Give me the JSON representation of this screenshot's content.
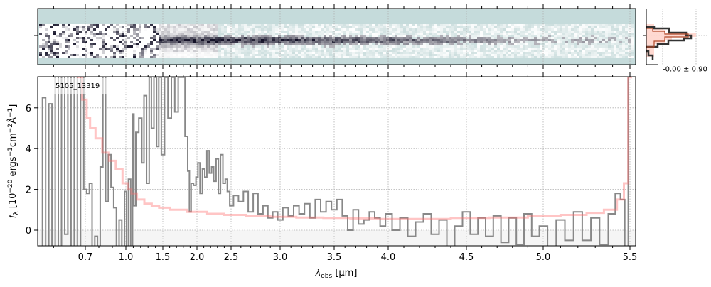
{
  "chart_data": {
    "type": "line",
    "object_label": "5105_13319",
    "xlabel": "λ_obs [μm]",
    "xlabel_parts": {
      "lam": "λ",
      "sub": "obs",
      "rest": " [μm]"
    },
    "ylabel_parts": {
      "f": "f",
      "fsub": "λ",
      "a": " [10",
      "e1": "−20",
      "b": " ergs",
      "e2": "−1",
      "c": "cm",
      "e3": "−2",
      "d": "Å",
      "e4": "−1",
      "e": "]"
    },
    "xticks": [
      0.7,
      1.0,
      1.5,
      2.0,
      2.5,
      3.0,
      3.5,
      4.0,
      4.5,
      5.0,
      5.5
    ],
    "xtick_labels": [
      "0.7",
      "1.0",
      "1.5",
      "2.0",
      "2.5",
      "3.0",
      "3.5",
      "4.0",
      "4.5",
      "5.0",
      "5.5"
    ],
    "yticks": [
      0,
      2,
      4,
      6
    ],
    "ytick_labels": [
      "0",
      "2",
      "4",
      "6"
    ],
    "xlim": [
      0.55,
      5.53
    ],
    "ylim": [
      -0.75,
      7.5
    ],
    "grid": true,
    "colors": {
      "data": "#888888",
      "model": "#ff6f6f",
      "zero_band": "#f5f5f5",
      "twod_bg": "#c5dbdb"
    },
    "series": [
      {
        "name": "data",
        "x": [
          0.56,
          0.57,
          0.58,
          0.59,
          0.6,
          0.61,
          0.62,
          0.63,
          0.64,
          0.65,
          0.66,
          0.67,
          0.68,
          0.69,
          0.7,
          0.72,
          0.74,
          0.76,
          0.78,
          0.8,
          0.82,
          0.84,
          0.86,
          0.88,
          0.9,
          0.92,
          0.94,
          0.96,
          0.98,
          1.0,
          1.02,
          1.05,
          1.08,
          1.1,
          1.12,
          1.15,
          1.2,
          1.23,
          1.26,
          1.3,
          1.33,
          1.36,
          1.4,
          1.43,
          1.46,
          1.5,
          1.55,
          1.6,
          1.65,
          1.7,
          1.75,
          1.8,
          1.85,
          1.88,
          1.9,
          1.93,
          1.97,
          2.0,
          2.03,
          2.06,
          2.1,
          2.13,
          2.16,
          2.2,
          2.23,
          2.26,
          2.3,
          2.33,
          2.36,
          2.4,
          2.43,
          2.46,
          2.5,
          2.55,
          2.6,
          2.65,
          2.7,
          2.75,
          2.8,
          2.85,
          2.9,
          2.95,
          3.0,
          3.05,
          3.1,
          3.15,
          3.2,
          3.25,
          3.3,
          3.35,
          3.4,
          3.45,
          3.5,
          3.55,
          3.6,
          3.65,
          3.7,
          3.75,
          3.8,
          3.85,
          3.9,
          3.95,
          4.0,
          4.05,
          4.1,
          4.15,
          4.2,
          4.25,
          4.3,
          4.35,
          4.4,
          4.45,
          4.5,
          4.55,
          4.6,
          4.65,
          4.7,
          4.75,
          4.8,
          4.85,
          4.9,
          4.95,
          5.0,
          5.05,
          5.1,
          5.15,
          5.2,
          5.25,
          5.3,
          5.35,
          5.4,
          5.43,
          5.46,
          5.48,
          5.5
        ],
        "y": [
          -1,
          6.5,
          -1,
          6.2,
          -1,
          8,
          -1,
          8,
          -0.2,
          8,
          -1,
          8,
          -1,
          8,
          2,
          1.8,
          2.3,
          -1,
          -0.3,
          -1,
          3.1,
          8,
          1.4,
          3.7,
          2.1,
          1.1,
          -1,
          0.5,
          -1,
          1.9,
          -1,
          2.5,
          -0.8,
          5.7,
          1.2,
          4.8,
          5.5,
          3.3,
          6.6,
          2.3,
          7.5,
          5,
          7.5,
          4.1,
          7.5,
          3.7,
          7.5,
          5.5,
          7.5,
          5.8,
          7.5,
          7.5,
          4.6,
          2.9,
          0.9,
          2.3,
          2.2,
          2.6,
          3.3,
          1.8,
          3.0,
          2.6,
          3.9,
          2.8,
          3.1,
          2.4,
          3.5,
          1.8,
          3.7,
          2.3,
          2.5,
          1.9,
          1.2,
          1.7,
          1.4,
          1.9,
          0.9,
          1.8,
          0.8,
          1.2,
          0.6,
          0.9,
          0.5,
          1.1,
          0.7,
          1.2,
          0.8,
          1.3,
          0.6,
          1.5,
          0.9,
          1.4,
          1.0,
          1.5,
          0.7,
          0.0,
          1.0,
          0.3,
          0.5,
          0.9,
          0.6,
          0.2,
          0.8,
          0.0,
          0.6,
          -0.3,
          0.4,
          0.8,
          -0.2,
          0.5,
          -0.8,
          0.2,
          0.9,
          -0.2,
          0.6,
          -0.3,
          0.7,
          -0.6,
          0.6,
          -0.7,
          0.8,
          -0.3,
          0.2,
          -0.8,
          0.5,
          -0.5,
          0.9,
          -0.5,
          0.6,
          -0.7,
          0.8,
          1.8,
          1.5,
          -0.8,
          8
        ]
      },
      {
        "name": "model",
        "x": [
          0.68,
          0.7,
          0.72,
          0.75,
          0.8,
          0.85,
          0.9,
          0.95,
          1.0,
          1.05,
          1.1,
          1.2,
          1.3,
          1.4,
          1.5,
          1.7,
          2.0,
          2.3,
          2.5,
          2.8,
          3.0,
          3.3,
          3.5,
          3.8,
          4.0,
          4.3,
          4.5,
          4.8,
          5.0,
          5.2,
          5.3,
          5.4,
          5.45,
          5.48,
          5.5
        ],
        "y": [
          7.5,
          6.4,
          5.5,
          5.0,
          4.5,
          3.8,
          3.4,
          3.0,
          2.3,
          2.0,
          1.8,
          1.5,
          1.3,
          1.2,
          1.1,
          1.0,
          0.9,
          0.8,
          0.75,
          0.68,
          0.65,
          0.62,
          0.6,
          0.58,
          0.55,
          0.55,
          0.6,
          0.62,
          0.7,
          0.75,
          0.85,
          1.0,
          1.5,
          2.3,
          7.5
        ]
      }
    ],
    "inset": {
      "label": "-0.00 ± 0.90"
    }
  }
}
